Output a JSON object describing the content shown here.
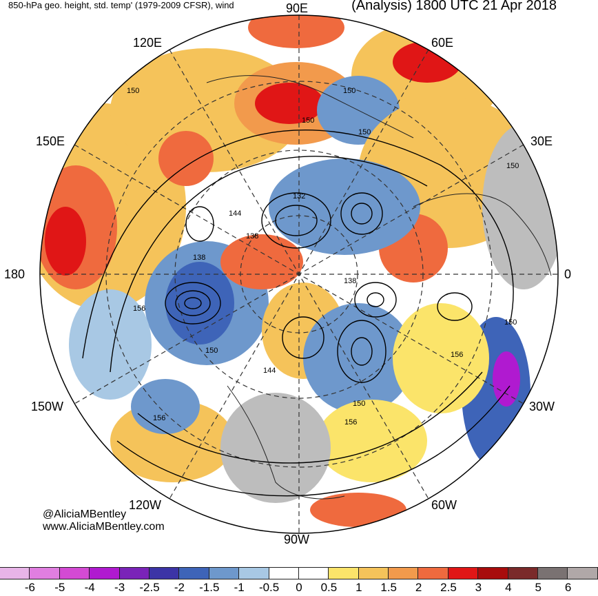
{
  "header": {
    "left_title": "850-hPa geo. height, std. temp' (1979-2009 CFSR), wind",
    "right_title": "(Analysis) 1800 UTC 21 Apr 2018"
  },
  "credits": {
    "handle": "@AliciaMBentley",
    "website": "www.AliciaMBentley.com"
  },
  "map": {
    "projection": "north-polar-stereographic",
    "longitude_labels": {
      "top": "90E",
      "upper_right": "60E",
      "right_upper": "30E",
      "right": "0",
      "right_lower": "30W",
      "lower_right": "60W",
      "bottom": "90W",
      "lower_left": "120W",
      "left_lower": "150W",
      "left": "180",
      "left_upper": "150E",
      "upper_left": "120E"
    },
    "contour_labels": [
      "150",
      "150",
      "150",
      "150",
      "150",
      "132",
      "144",
      "138",
      "138",
      "138",
      "156",
      "150",
      "144",
      "150",
      "156",
      "156",
      "156",
      "150"
    ]
  },
  "colorbar": {
    "colors": [
      "#e8b4e8",
      "#e07ee0",
      "#d44ad4",
      "#b01ad0",
      "#7a24b8",
      "#3c34a6",
      "#3e64b8",
      "#6e98cc",
      "#a8c8e4",
      "#ffffff",
      "#ffffff",
      "#fbe46a",
      "#f5c35a",
      "#f29a4c",
      "#ef6a3e",
      "#e01616",
      "#a80c0c",
      "#7a2a2a",
      "#7a7272",
      "#b0a8a8"
    ],
    "tick_labels": [
      "-6",
      "-5",
      "-4",
      "-3",
      "-2.5",
      "-2",
      "-1.5",
      "-1",
      "-0.5",
      "0",
      "0.5",
      "1",
      "1.5",
      "2",
      "2.5",
      "3",
      "4",
      "5",
      "6"
    ]
  }
}
